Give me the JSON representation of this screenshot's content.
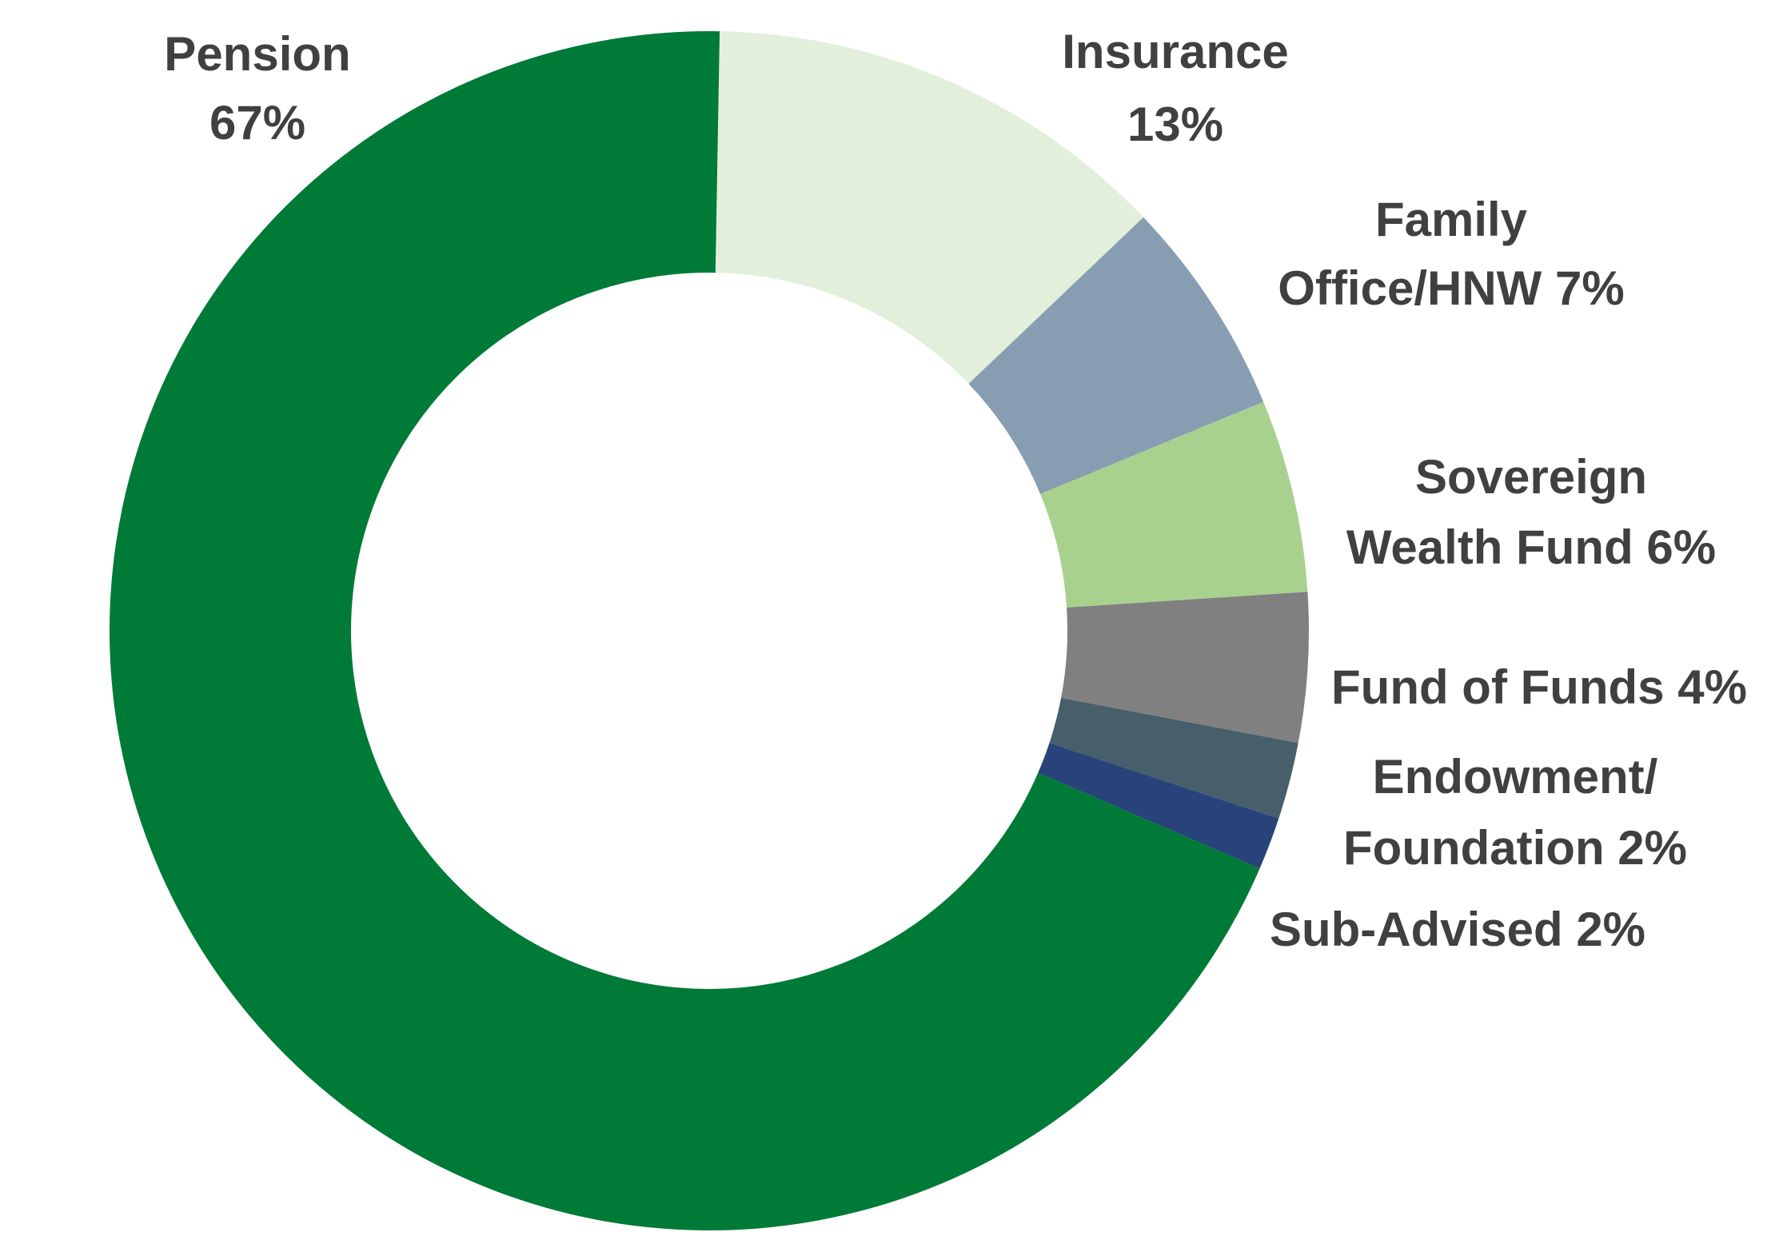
{
  "chart_data": {
    "type": "pie",
    "donut": true,
    "categories": [
      "Pension",
      "Insurance",
      "Family Office/HNW",
      "Sovereign Wealth Fund",
      "Fund of Funds",
      "Endowment/ Foundation",
      "Sub-Advised"
    ],
    "values": [
      67,
      13,
      7,
      6,
      4,
      2,
      2
    ],
    "value_labels": [
      "67%",
      "13%",
      "7%",
      "6%",
      "4%",
      "2%",
      "2%"
    ],
    "colors": [
      "#007A37",
      "#E2EFDA",
      "#879EB2",
      "#A9D18E",
      "#808080",
      "#475F6A",
      "#27437A"
    ],
    "labels": [
      {
        "lines": [
          "Pension",
          "67%"
        ]
      },
      {
        "lines": [
          "Insurance",
          "13%"
        ]
      },
      {
        "lines": [
          "Family",
          "Office/HNW  7%"
        ]
      },
      {
        "lines": [
          "Sovereign",
          "Wealth Fund  6%"
        ]
      },
      {
        "lines": [
          "Fund of Funds  4%"
        ]
      },
      {
        "lines": [
          "Endowment/",
          "Foundation  2%"
        ]
      },
      {
        "lines": [
          "Sub-Advised 2%"
        ]
      }
    ],
    "title": "",
    "legend": "none"
  }
}
